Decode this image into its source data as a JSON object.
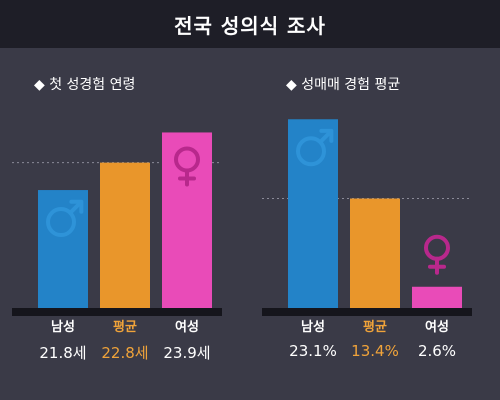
{
  "header": {
    "title": "전국 성의식 조사"
  },
  "colors": {
    "male": "#2383c8",
    "average": "#e9962b",
    "female": "#e94bb8",
    "highlight_text": "#f0a33a",
    "background": "#3a3a47",
    "header_bg": "#1e1e27"
  },
  "icons": {
    "male": "male-symbol-icon",
    "female": "female-symbol-icon"
  },
  "chart_data": [
    {
      "type": "bar",
      "title": "◆ 첫 성경험 연령",
      "categories": [
        "남성",
        "평균",
        "여성"
      ],
      "values": [
        21.8,
        22.8,
        23.9
      ],
      "value_labels": [
        "21.8세",
        "22.8세",
        "23.9세"
      ],
      "unit": "세",
      "ylim": [
        17.5,
        24.5
      ],
      "grid": false,
      "reference_line": "평균"
    },
    {
      "type": "bar",
      "title": "◆ 성매매 경험 평균",
      "categories": [
        "남성",
        "평균",
        "여성"
      ],
      "values": [
        23.1,
        13.4,
        2.6
      ],
      "value_labels": [
        "23.1%",
        "13.4%",
        "2.6%"
      ],
      "unit": "%",
      "ylim": [
        0,
        23.5
      ],
      "grid": false,
      "reference_line": "평균"
    }
  ]
}
